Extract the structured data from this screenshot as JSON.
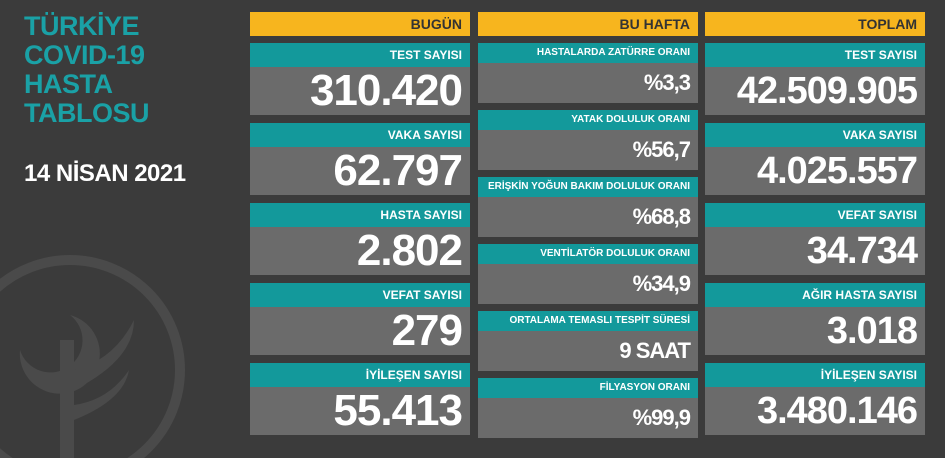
{
  "title": {
    "lines": [
      "TÜRKİYE",
      "COVID-19",
      "HASTA",
      "TABLOSU"
    ]
  },
  "date": "14 NİSAN 2021",
  "columns": [
    {
      "header": "BUGÜN",
      "items": [
        {
          "label": "TEST SAYISI",
          "value": "310.420"
        },
        {
          "label": "VAKA SAYISI",
          "value": "62.797"
        },
        {
          "label": "HASTA SAYISI",
          "value": "2.802"
        },
        {
          "label": "VEFAT SAYISI",
          "value": "279"
        },
        {
          "label": "İYİLEŞEN SAYISI",
          "value": "55.413"
        }
      ]
    },
    {
      "header": "BU HAFTA",
      "items": [
        {
          "label": "HASTALARDA ZATÜRRE ORANI",
          "value": "%3,3"
        },
        {
          "label": "YATAK DOLULUK ORANI",
          "value": "%56,7"
        },
        {
          "label": "ERİŞKİN YOĞUN BAKIM DOLULUK ORANI",
          "value": "%68,8"
        },
        {
          "label": "VENTİLATÖR DOLULUK ORANI",
          "value": "%34,9"
        },
        {
          "label": "ORTALAMA TEMASLI TESPİT SÜRESİ",
          "value": "9 SAAT"
        },
        {
          "label": "FİLYASYON ORANI",
          "value": "%99,9"
        }
      ]
    },
    {
      "header": "TOPLAM",
      "items": [
        {
          "label": "TEST SAYISI",
          "value": "42.509.905"
        },
        {
          "label": "VAKA SAYISI",
          "value": "4.025.557"
        },
        {
          "label": "VEFAT SAYISI",
          "value": "34.734"
        },
        {
          "label": "AĞIR HASTA SAYISI",
          "value": "3.018"
        },
        {
          "label": "İYİLEŞEN SAYISI",
          "value": "3.480.146"
        }
      ]
    }
  ]
}
